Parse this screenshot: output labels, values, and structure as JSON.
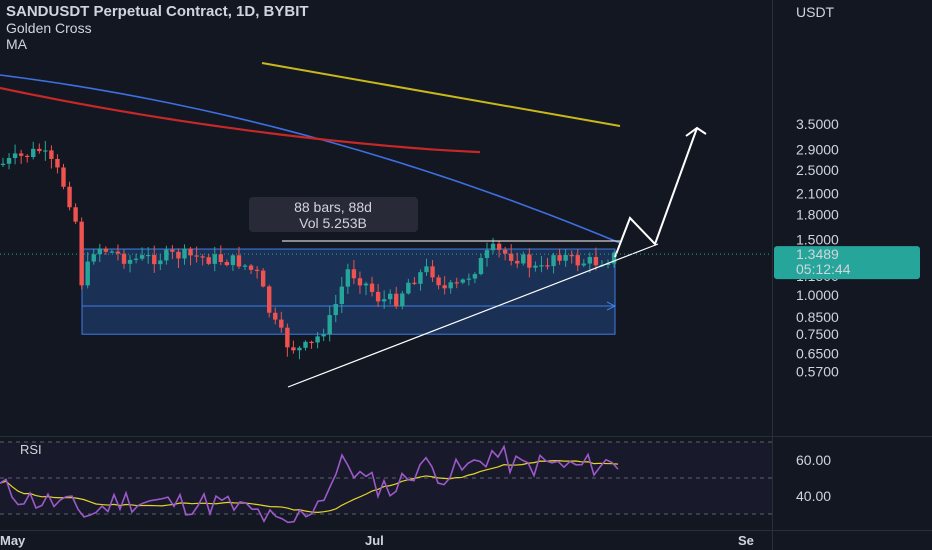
{
  "header": {
    "title": "SANDUSDT Perpetual Contract, 1D, BYBIT",
    "indicator_1": "Golden Cross",
    "indicator_2": "MA"
  },
  "currency": "USDT",
  "price_tag": {
    "price": "1.3489",
    "countdown": "05:12:44"
  },
  "range_box": {
    "line1": "88 bars, 88d",
    "line2": "Vol 5.253B"
  },
  "rsi_label": "RSI",
  "colors": {
    "background": "#131722",
    "up": "#26a69a",
    "down": "#ef5350",
    "ma_blue": "#3d6fe0",
    "ma_red": "#c62828",
    "ma_yellow": "#c9b81a",
    "rsi": "#9c59c9",
    "rsi_ma": "#e5d428",
    "range_fill": "#1d3a66",
    "range_border": "#3f7ee6",
    "price_tag": "#26a69a"
  },
  "chart_data": {
    "type": "candlestick",
    "price_axis": {
      "scale": "log",
      "ticks": [
        "3.5000",
        "2.9000",
        "2.5000",
        "2.1000",
        "1.8000",
        "1.5000",
        "1.1500",
        "1.0000",
        "0.8500",
        "0.7500",
        "0.6500",
        "0.5700"
      ]
    },
    "time_axis": {
      "labels": [
        "May",
        "Jul",
        "Se"
      ]
    },
    "rsi_axis": {
      "ticks": [
        "60.00",
        "40.00"
      ]
    },
    "range_measure": {
      "bars": 88,
      "days": 88,
      "volume": "5.253B",
      "from_price": 0.75,
      "to_price": 1.4
    },
    "last_price": 1.3489
  }
}
